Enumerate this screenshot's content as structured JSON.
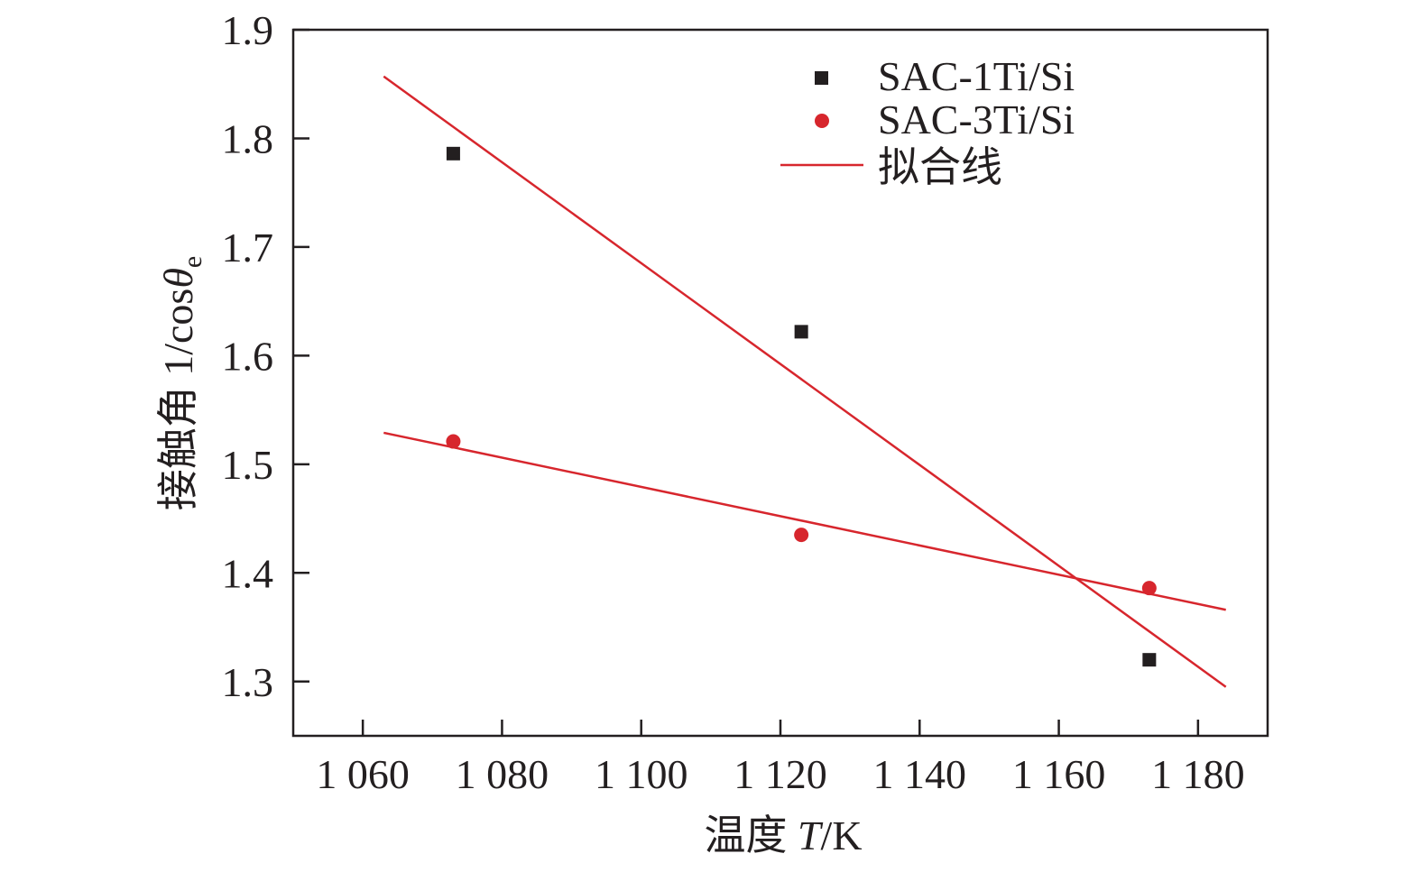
{
  "chart_data": {
    "type": "scatter",
    "xlabel": {
      "prefix": "温度",
      "var": "T",
      "suffix": "/K"
    },
    "ylabel": {
      "prefix": "接触角",
      "text": "1/cos",
      "var": "θ",
      "sub": "e"
    },
    "xlim": [
      1050,
      1190
    ],
    "ylim": [
      1.25,
      1.9
    ],
    "xticks": [
      1060,
      1080,
      1100,
      1120,
      1140,
      1160,
      1180
    ],
    "xtick_labels": [
      "1 060",
      "1 080",
      "1 100",
      "1 120",
      "1 140",
      "1 160",
      "1 180"
    ],
    "yticks": [
      1.3,
      1.4,
      1.5,
      1.6,
      1.7,
      1.8,
      1.9
    ],
    "ytick_labels": [
      "1.3",
      "1.4",
      "1.5",
      "1.6",
      "1.7",
      "1.8",
      "1.9"
    ],
    "grid": false,
    "legend_position": "top-right",
    "series": [
      {
        "name": "SAC-1Ti/Si",
        "marker": "square",
        "color": "#231f20",
        "x": [
          1073,
          1123,
          1173
        ],
        "y": [
          1.786,
          1.622,
          1.32
        ]
      },
      {
        "name": "SAC-3Ti/Si",
        "marker": "circle",
        "color": "#d7262d",
        "x": [
          1073,
          1123,
          1173
        ],
        "y": [
          1.521,
          1.435,
          1.386
        ]
      }
    ],
    "fit_lines": [
      {
        "x": [
          1063,
          1184
        ],
        "y": [
          1.857,
          1.295
        ],
        "color": "#d7262d"
      },
      {
        "x": [
          1063,
          1184
        ],
        "y": [
          1.529,
          1.366
        ],
        "color": "#d7262d"
      }
    ],
    "fit_legend_label": "拟合线"
  }
}
